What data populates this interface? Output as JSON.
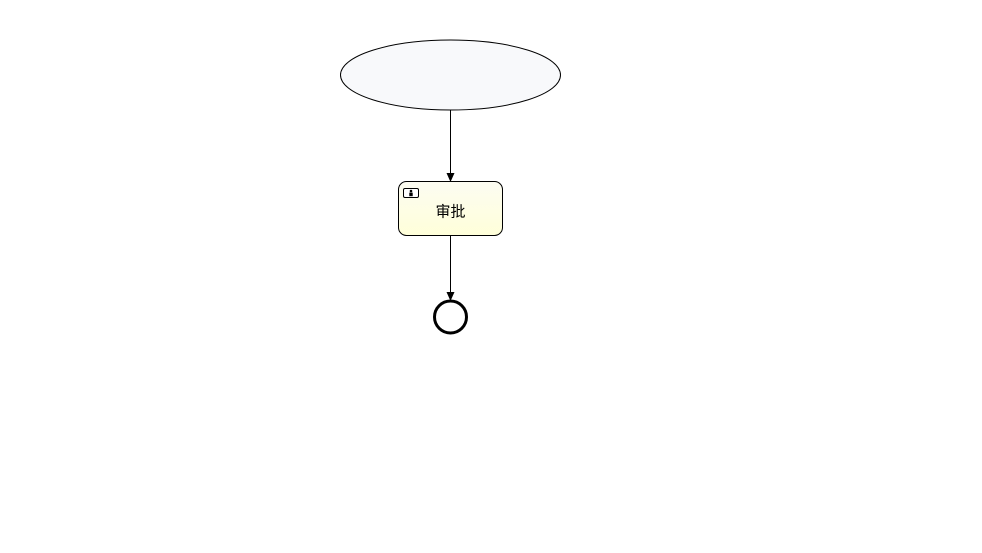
{
  "diagram": {
    "start_event": {
      "label": "",
      "fill": "#f8f9fb",
      "stroke": "#000000"
    },
    "task": {
      "label": "审批",
      "icon": "user-task-icon",
      "fill_top": "#fcfcf2",
      "fill_bottom": "#ffffd9",
      "stroke": "#000000"
    },
    "end_event": {
      "label": "",
      "stroke": "#000000",
      "fill": "#ffffff"
    },
    "flows": [
      {
        "from": "start_event",
        "to": "task"
      },
      {
        "from": "task",
        "to": "end_event"
      }
    ]
  }
}
